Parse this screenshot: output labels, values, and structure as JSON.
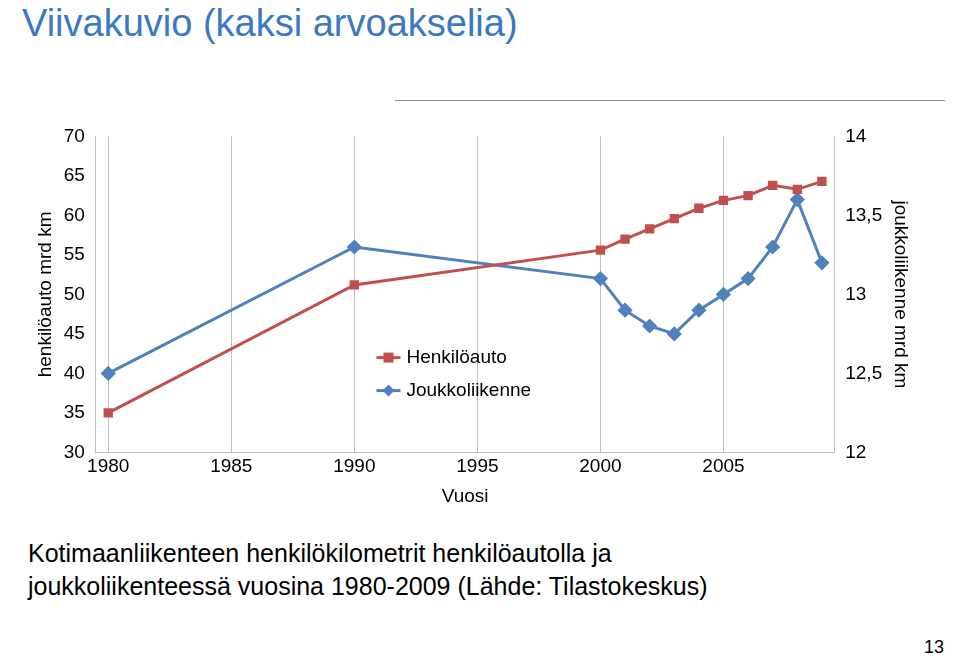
{
  "heading": "Viivakuvio (kaksi arvoakselia)",
  "caption": [
    "Kotimaanliikenteen henkilökilometrit henkilöautolla ja",
    "joukkoliikenteessä vuosina 1980-2009 (Lähde: Tilastokeskus)"
  ],
  "page_number": "13",
  "chart_data": {
    "type": "line",
    "x_label": "Vuosi",
    "y_label": "henkilöauto mrd km",
    "y2_label": "joukkoliikenne mrd km",
    "x": [
      1980,
      1990,
      2000,
      2001,
      2002,
      2003,
      2004,
      2005,
      2006,
      2007,
      2008,
      2009
    ],
    "xlim": [
      1979.5,
      2009.5
    ],
    "xticks": [
      1980,
      1985,
      1990,
      1995,
      2000,
      2005
    ],
    "ylim": [
      30,
      70
    ],
    "yticks": [
      30,
      35,
      40,
      45,
      50,
      55,
      60,
      65,
      70
    ],
    "y2lim": [
      12,
      14
    ],
    "y2ticks": [
      12,
      {
        "value": 12.5,
        "label": "12,5"
      },
      13,
      {
        "value": 13.5,
        "label": "13,5"
      },
      14
    ],
    "grid": "x",
    "legend": "center",
    "series": [
      {
        "name": "Henkilöauto",
        "color": "#c0504d",
        "marker": "square",
        "line_style": "solid",
        "values": [
          35,
          51.2,
          55.6,
          57,
          58.3,
          59.6,
          60.9,
          61.9,
          62.5,
          63.8,
          63.3,
          64.3
        ]
      },
      {
        "name": "Joukkoliikenne",
        "color": "#4f81bd",
        "marker": "diamond",
        "line_style": "solid",
        "axis": "y2",
        "values": [
          12.5,
          13.3,
          13.1,
          12.9,
          12.8,
          12.75,
          12.9,
          13.0,
          13.1,
          13.3,
          13.6,
          13.2
        ]
      }
    ]
  }
}
